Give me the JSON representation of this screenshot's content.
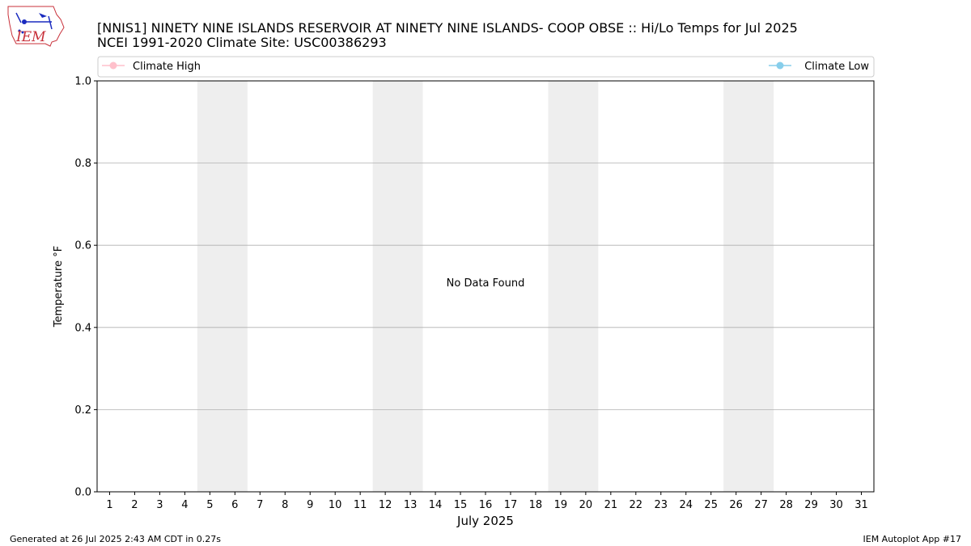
{
  "logo": {
    "text": "IEM"
  },
  "chart_data": {
    "type": "line",
    "title": "[NNIS1] NINETY NINE ISLANDS RESERVOIR  AT NINETY NINE ISLANDS- COOP OBSE :: Hi/Lo Temps for Jul 2025",
    "subtitle": "NCEI 1991-2020 Climate Site: USC00386293",
    "xlabel": "July 2025",
    "ylabel": "Temperature °F",
    "xlim": [
      0.5,
      31.5
    ],
    "ylim": [
      0,
      1
    ],
    "x_ticks": [
      "1",
      "2",
      "3",
      "4",
      "5",
      "6",
      "7",
      "8",
      "9",
      "10",
      "11",
      "12",
      "13",
      "14",
      "15",
      "16",
      "17",
      "18",
      "19",
      "20",
      "21",
      "22",
      "23",
      "24",
      "25",
      "26",
      "27",
      "28",
      "29",
      "30",
      "31"
    ],
    "y_ticks": [
      "0.0",
      "0.2",
      "0.4",
      "0.6",
      "0.8",
      "1.0"
    ],
    "y_tick_values": [
      0,
      0.2,
      0.4,
      0.6,
      0.8,
      1.0
    ],
    "weekend_bands": [
      [
        4.5,
        6.5
      ],
      [
        11.5,
        13.5
      ],
      [
        18.5,
        20.5
      ],
      [
        25.5,
        27.5
      ]
    ],
    "grid": "horizontal",
    "legend_placement": "top, above plot",
    "series": [
      {
        "name": "Climate High",
        "color": "#ffc0cb",
        "values": []
      },
      {
        "name": "Climate Low",
        "color": "#87ceeb",
        "values": []
      }
    ],
    "annotation": "No Data Found"
  },
  "footer": {
    "left": "Generated at 26 Jul 2025 2:43 AM CDT in 0.27s",
    "right": "IEM Autoplot App #17"
  }
}
